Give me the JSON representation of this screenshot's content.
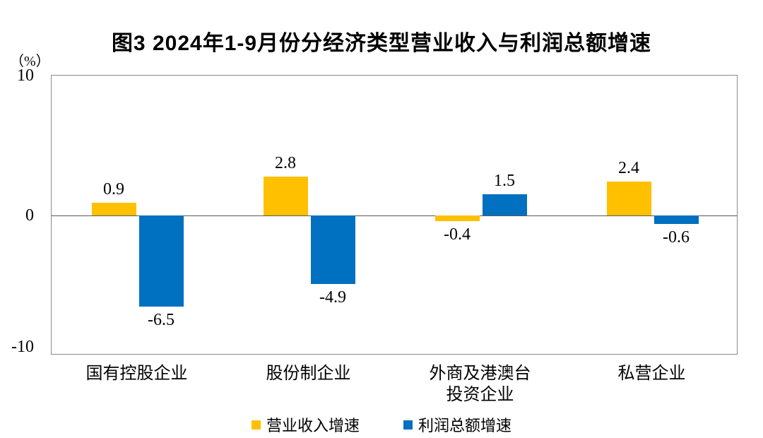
{
  "chart_data": {
    "type": "bar",
    "title": "图3 2024年1-9月份分经济类型营业收入与利润总额增速",
    "y_unit": "（%）",
    "categories": [
      "国有控股企业",
      "股份制企业",
      "外商及港澳台\n投资企业",
      "私营企业"
    ],
    "series": [
      {
        "key": "revenue",
        "name": "营业收入增速",
        "color": "#FFC000",
        "values": [
          0.9,
          2.8,
          -0.4,
          2.4
        ]
      },
      {
        "key": "profit",
        "name": "利润总额增速",
        "color": "#0070C0",
        "values": [
          -6.5,
          -4.9,
          1.5,
          -0.6
        ]
      }
    ],
    "ylim": [
      -10,
      10
    ],
    "y_ticks": [
      "10",
      "0",
      "-10"
    ],
    "grid": false,
    "legend_position": "bottom",
    "colors": {
      "text": "#000000",
      "plot_border": "#8a8a8a",
      "zero_line": "#595959"
    }
  }
}
